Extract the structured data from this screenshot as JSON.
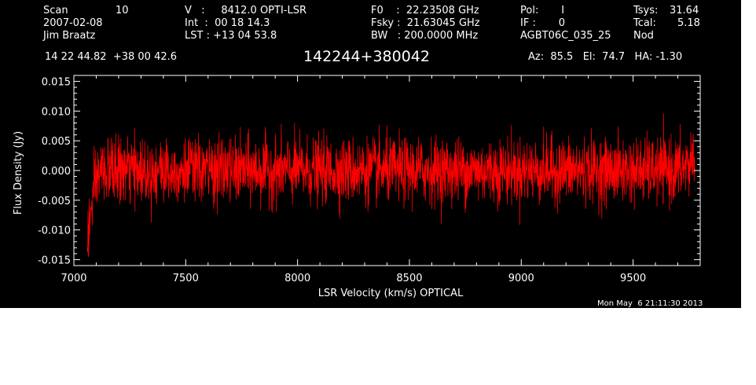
{
  "header": {
    "col1": {
      "line1_label": "Scan",
      "line1_value": "10",
      "line2": "2007-02-08",
      "line3": "Jim Braatz"
    },
    "col2": {
      "line1": "V   :     8412.0 OPTI-LSR",
      "line2": "Int  :  00 18 14.3",
      "line3": "LST : +13 04 53.8"
    },
    "col3": {
      "line1": "F0    :  22.23508 GHz",
      "line2": "Fsky :  21.63045 GHz",
      "line3": "BW   : 200.0000 MHz"
    },
    "col4": {
      "line1": "Pol:       I",
      "line2": "IF :       0",
      "line3": "AGBT06C_035_25"
    },
    "col5": {
      "line1_label": "Tsys:",
      "line1_value": "31.64",
      "line2_label": "Tcal:",
      "line2_value": "5.18",
      "line3": "Nod"
    },
    "coords": "14 22 44.82  +38 00 42.6",
    "source": "142244+380042",
    "pointing": "Az:  85.5   El:  74.7   HA: -1.30",
    "timestamp": "Mon May  6 21:11:30 2013"
  },
  "colors": {
    "background": "#000000",
    "foreground": "#ffffff",
    "trace": "#ff0000"
  },
  "chart_data": {
    "type": "line",
    "xlabel": "LSR Velocity (km/s) OPTICAL",
    "ylabel": "Flux Density (Jy)",
    "xlim": [
      7000,
      9800
    ],
    "ylim": [
      -0.016,
      0.016
    ],
    "xticks": [
      7000,
      7500,
      8000,
      8500,
      9000,
      9500
    ],
    "xtick_labels": [
      "7000",
      "7500",
      "8000",
      "8500",
      "9000",
      "9500"
    ],
    "yticks": [
      -0.015,
      -0.01,
      -0.005,
      0.0,
      0.005,
      0.01,
      0.015
    ],
    "ytick_labels": [
      "-0.015",
      "-0.010",
      "-0.005",
      "0.000",
      "0.005",
      "0.010",
      "0.015"
    ],
    "series": [
      {
        "x": [
          7060,
          7070,
          7080,
          7090,
          7100,
          7110,
          7120,
          7150,
          7200,
          7300,
          7400,
          7500,
          7600,
          7700,
          7800,
          7900,
          8000,
          8100,
          8200,
          8300,
          8400,
          8500,
          8600,
          8700,
          8800,
          8900,
          9000,
          9100,
          9200,
          9300,
          9400,
          9500,
          9600,
          9700,
          9750,
          9775
        ],
        "y": [
          -0.012,
          -0.009,
          -0.006,
          -0.004,
          -0.002,
          -0.001,
          0.0,
          0.0,
          0.0,
          0.0,
          0.0,
          0.0,
          0.0,
          0.0,
          0.0,
          0.0,
          0.0,
          0.0,
          0.0,
          0.0,
          0.0,
          0.0,
          0.0,
          0.0,
          0.0,
          0.0,
          0.0,
          0.0,
          0.0,
          0.0,
          0.0,
          0.0,
          0.0,
          0.0,
          0.001,
          0.003
        ],
        "noise_rms": 0.0027
      }
    ],
    "grid": false,
    "legend": "none"
  }
}
